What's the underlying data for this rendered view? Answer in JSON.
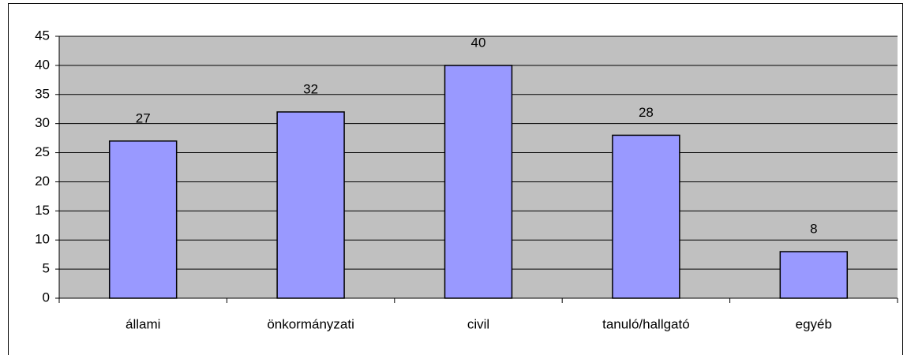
{
  "chart_data": {
    "type": "bar",
    "categories": [
      "állami",
      "önkormányzati",
      "civil",
      "tanuló/hallgató",
      "egyéb"
    ],
    "values": [
      27,
      32,
      40,
      28,
      8
    ],
    "color": "#9999ff",
    "ylim": [
      0,
      45
    ],
    "yticks": [
      0,
      5,
      10,
      15,
      20,
      25,
      30,
      35,
      40,
      45
    ],
    "grid": true
  }
}
